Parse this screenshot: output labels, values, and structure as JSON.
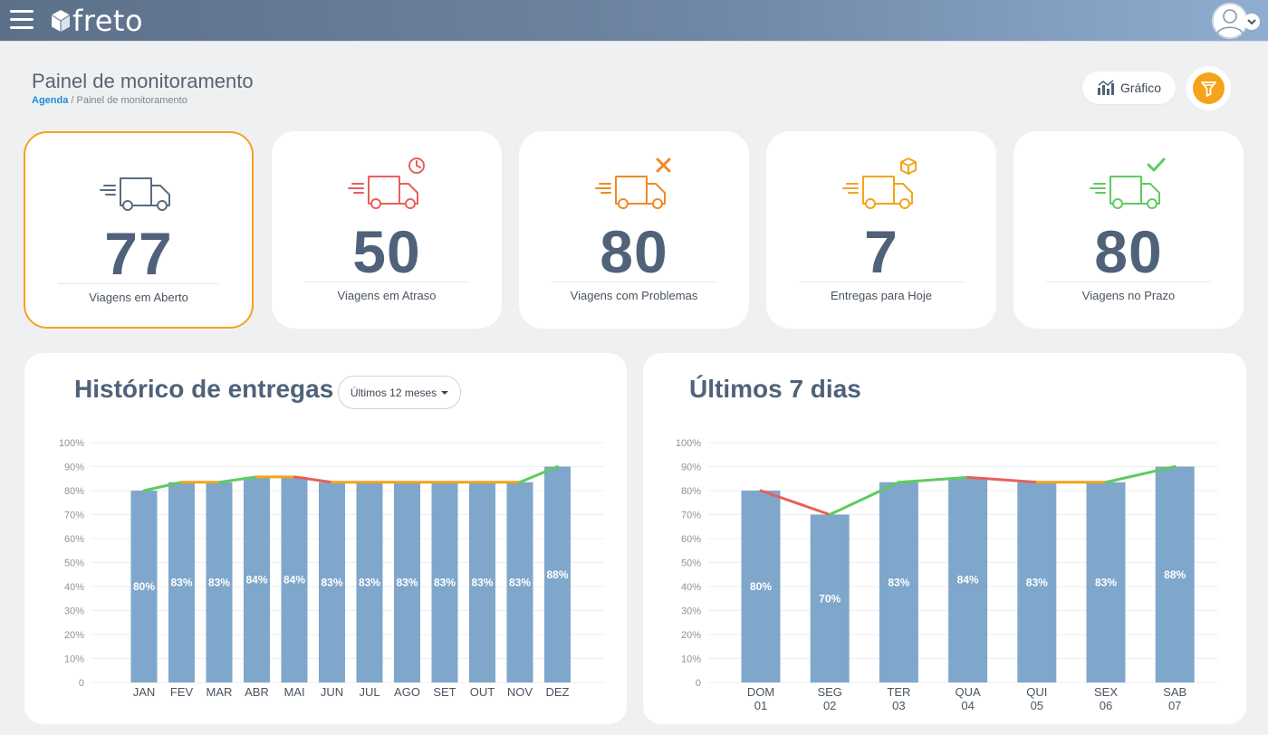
{
  "app": {
    "brand": "freto"
  },
  "header": {
    "title": "Painel de monitoramento",
    "breadcrumb": {
      "link": "Agenda",
      "separator": " / ",
      "current": "Painel de monitoramento"
    },
    "grafico_label": "Gráfico"
  },
  "icons": {
    "menu": "hamburger-icon",
    "logo": "box-logo-icon",
    "user": "user-avatar-icon",
    "chart": "bar-chart-icon",
    "filter": "funnel-icon"
  },
  "colors": {
    "accent": "#f5a31b",
    "bar": "#7fa7cb",
    "number": "#4f6279",
    "trend_up": "#5ecb5e",
    "trend_down": "#e8605a",
    "trend_flat": "#f5a31b",
    "card_blue": "#5a6b82",
    "card_red": "#e8605a",
    "card_orange": "#f08a24",
    "card_yellow": "#f5a31b",
    "card_green": "#5ecb5e"
  },
  "cards": [
    {
      "value": "77",
      "label": "Viagens em Aberto",
      "icon": "truck-icon"
    },
    {
      "value": "50",
      "label": "Viagens em Atraso",
      "icon": "truck-clock-icon"
    },
    {
      "value": "80",
      "label": "Viagens com Problemas",
      "icon": "truck-tools-icon"
    },
    {
      "value": "7",
      "label": "Entregas para Hoje",
      "icon": "truck-box-icon"
    },
    {
      "value": "80",
      "label": "Viagens no Prazo",
      "icon": "truck-check-icon"
    }
  ],
  "history": {
    "title": "Histórico de entregas",
    "period": "Últimos 12 meses"
  },
  "week": {
    "title": "Últimos 7 dias"
  },
  "chart_data": [
    {
      "type": "bar",
      "title": "Histórico de entregas",
      "categories": [
        "JAN",
        "FEV",
        "MAR",
        "ABR",
        "MAI",
        "JUN",
        "JUL",
        "AGO",
        "SET",
        "OUT",
        "NOV",
        "DEZ"
      ],
      "values": [
        80,
        83,
        83,
        84,
        84,
        83,
        83,
        83,
        83,
        83,
        83,
        88
      ],
      "bar_heights": [
        80,
        83.5,
        83.5,
        85.7,
        85.7,
        83.5,
        83.5,
        83.5,
        83.5,
        83.5,
        83.5,
        90
      ],
      "value_labels": [
        "80%",
        "83%",
        "83%",
        "84%",
        "84%",
        "83%",
        "83%",
        "83%",
        "83%",
        "83%",
        "83%",
        "88%"
      ],
      "yticks": [
        "100%",
        "90%",
        "80%",
        "70%",
        "60%",
        "50%",
        "40%",
        "30%",
        "20%",
        "10%",
        "0"
      ],
      "ylim": [
        0,
        100
      ],
      "grid": true
    },
    {
      "type": "bar",
      "title": "Últimos 7 dias",
      "categories": [
        [
          "DOM",
          "01"
        ],
        [
          "SEG",
          "02"
        ],
        [
          "TER",
          "03"
        ],
        [
          "QUA",
          "04"
        ],
        [
          "QUI",
          "05"
        ],
        [
          "SEX",
          "06"
        ],
        [
          "SAB",
          "07"
        ]
      ],
      "values": [
        80,
        70,
        83,
        84,
        83,
        83,
        88
      ],
      "bar_heights": [
        80,
        70,
        83.5,
        85.5,
        83.5,
        83.5,
        90
      ],
      "value_labels": [
        "80%",
        "70%",
        "83%",
        "84%",
        "83%",
        "83%",
        "88%"
      ],
      "yticks": [
        "100%",
        "90%",
        "80%",
        "70%",
        "60%",
        "50%",
        "40%",
        "30%",
        "20%",
        "10%",
        "0"
      ],
      "ylim": [
        0,
        100
      ],
      "grid": true
    }
  ]
}
